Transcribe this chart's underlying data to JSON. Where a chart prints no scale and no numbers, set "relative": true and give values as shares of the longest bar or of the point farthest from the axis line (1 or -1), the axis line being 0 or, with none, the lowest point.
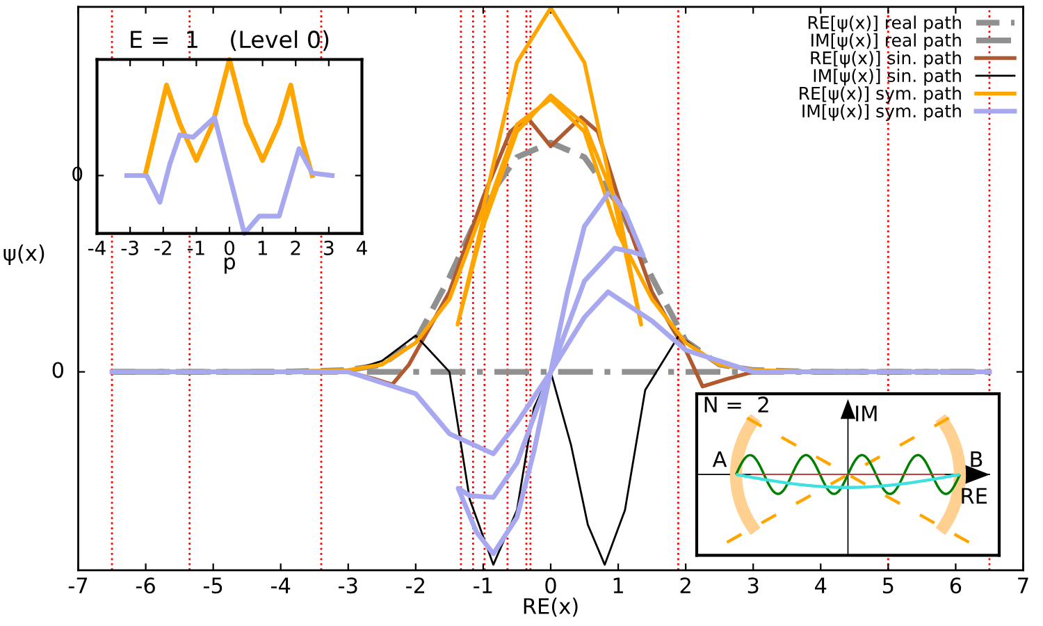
{
  "chart_data": [
    {
      "type": "line",
      "relative": true,
      "xlabel": "RE(x)",
      "ylabel": "ψ(x)",
      "xlim": [
        -7,
        7
      ],
      "xticks": [
        -7,
        -6,
        -5,
        -4,
        -3,
        -2,
        -1,
        0,
        1,
        2,
        3,
        4,
        5,
        6,
        7
      ],
      "annotations": [
        "0"
      ],
      "grid": false,
      "legend": "top right",
      "series": [
        {
          "name": "RE[ψ(x)] real path",
          "color": "#909090",
          "line_style": "dashed",
          "x": [
            -6.5,
            -4,
            -3,
            -2.5,
            -2,
            -1.5,
            -1,
            -0.5,
            0,
            0.5,
            1,
            1.5,
            2,
            2.5,
            3,
            4,
            6.5
          ],
          "values": [
            0,
            0,
            0.005,
            0.02,
            0.085,
            0.26,
            0.46,
            0.59,
            0.63,
            0.59,
            0.46,
            0.26,
            0.085,
            0.02,
            0.005,
            0,
            0
          ]
        },
        {
          "name": "IM[ψ(x)] real path",
          "color": "#909090",
          "line_style": "dashdot",
          "x": [
            -6.5,
            6.5
          ],
          "values": [
            0,
            0
          ]
        },
        {
          "name": "RE[ψ(x)] sin. path",
          "color": "#b05a30",
          "line_style": "solid",
          "x": [
            -6.5,
            -3,
            -2.6,
            -2.35,
            -2.1,
            -1.8,
            -1.5,
            -1,
            -0.6,
            -0.35,
            0,
            0.45,
            0.7,
            1,
            1.5,
            1.8,
            2,
            2.25,
            2.6,
            3,
            6.5
          ],
          "values": [
            0,
            0,
            -0.02,
            -0.035,
            0.02,
            0.12,
            0.22,
            0.48,
            0.66,
            0.7,
            0.62,
            0.7,
            0.66,
            0.48,
            0.22,
            0.12,
            0.06,
            -0.04,
            -0.02,
            0,
            0
          ]
        },
        {
          "name": "IM[ψ(x)] sin. path",
          "color": "#000000",
          "line_style": "solid",
          "x": [
            -6.5,
            -3,
            -2.5,
            -2,
            -1.5,
            -1.2,
            -0.85,
            -0.5,
            -0.25,
            0,
            0.3,
            0.55,
            0.8,
            1.1,
            1.4,
            1.9,
            2.4,
            3,
            6.5
          ],
          "values": [
            0,
            0,
            0.03,
            0.1,
            0,
            -0.35,
            -0.53,
            -0.38,
            -0.1,
            0,
            -0.2,
            -0.42,
            -0.53,
            -0.38,
            -0.05,
            0.1,
            0.03,
            0,
            0
          ]
        },
        {
          "name": "RE[ψ(x)] sym. path",
          "color": "#ffa500",
          "line_style": "solid",
          "x": [
            -6.5,
            -4,
            -3,
            -2.5,
            -2,
            -1.5,
            -1,
            -0.5,
            0,
            0.5,
            1,
            1.34,
            1,
            0.5,
            0,
            -0.5,
            -1,
            -1.38,
            -1,
            -0.5,
            0,
            0.5,
            1,
            1.5,
            2,
            2.5,
            3,
            4,
            6.5
          ],
          "values": [
            0,
            0,
            0.005,
            0.02,
            0.08,
            0.2,
            0.45,
            0.85,
            1.0,
            0.85,
            0.42,
            0.13,
            0.45,
            0.68,
            0.76,
            0.66,
            0.4,
            0.13,
            0.42,
            0.68,
            0.75,
            0.66,
            0.38,
            0.2,
            0.08,
            0.02,
            0.005,
            0,
            0
          ]
        },
        {
          "name": "IM[ψ(x)] sym. path",
          "color": "#a8a8f0",
          "line_style": "solid",
          "x": [
            -6.5,
            -3,
            -2,
            -1.5,
            -0.85,
            -0.5,
            0,
            0.5,
            0.85,
            1.5,
            2,
            3,
            6.5
          ],
          "values": [
            0,
            0,
            -0.06,
            -0.17,
            -0.225,
            -0.14,
            0,
            0.15,
            0.22,
            0.14,
            0.06,
            0,
            0
          ]
        },
        {
          "color": "#a8a8f0",
          "line_style": "solid",
          "x": [
            0.85,
            0.5,
            0.25,
            0,
            -0.25,
            -0.5,
            -0.85,
            -1.1,
            -1.37,
            -1.2,
            -0.85,
            -0.5,
            0,
            0.5,
            0.95,
            1.2,
            1.37,
            1.1,
            0.95
          ],
          "values": [
            0.49,
            0.4,
            0.22,
            0,
            -0.22,
            -0.4,
            -0.5,
            -0.44,
            -0.32,
            -0.34,
            -0.345,
            -0.25,
            0,
            0.25,
            0.34,
            0.33,
            0.32,
            0.44,
            0.48
          ]
        }
      ],
      "ref_lines": [
        {
          "axis": "x",
          "value": -6.5,
          "color": "#ff0000",
          "line_style": "dotted"
        },
        {
          "axis": "x",
          "value": -5.35,
          "color": "#ff0000",
          "line_style": "dotted"
        },
        {
          "axis": "x",
          "value": -3.4,
          "color": "#ff0000",
          "line_style": "dotted"
        },
        {
          "axis": "x",
          "value": -1.33,
          "color": "#ff0000",
          "line_style": "dotted"
        },
        {
          "axis": "x",
          "value": -1.15,
          "color": "#ff0000",
          "line_style": "dotted"
        },
        {
          "axis": "x",
          "value": -0.98,
          "color": "#ff0000",
          "line_style": "dotted"
        },
        {
          "axis": "x",
          "value": -0.64,
          "color": "#ff0000",
          "line_style": "dotted"
        },
        {
          "axis": "x",
          "value": -0.36,
          "color": "#ff0000",
          "line_style": "dotted"
        },
        {
          "axis": "x",
          "value": -0.3,
          "color": "#ff0000",
          "line_style": "dotted"
        },
        {
          "axis": "x",
          "value": 1.89,
          "color": "#ff0000",
          "line_style": "dotted"
        },
        {
          "axis": "x",
          "value": 5.0,
          "color": "#ff0000",
          "line_style": "dotted"
        },
        {
          "axis": "x",
          "value": 6.5,
          "color": "#ff0000",
          "line_style": "dotted"
        }
      ]
    },
    {
      "type": "line",
      "relative": true,
      "title": "E =  1    (Level 0)",
      "xlabel": "p",
      "xlim": [
        -4,
        4
      ],
      "xticks": [
        -4,
        -3,
        -2,
        -1,
        0,
        1,
        2,
        3,
        4
      ],
      "annotations": [
        "0"
      ],
      "series": [
        {
          "color": "#ffa500",
          "x": [
            -2.55,
            -2.3,
            -1.9,
            -1.5,
            -1,
            -0.5,
            0,
            0.5,
            1,
            1.5,
            1.85,
            2.2,
            2.5
          ],
          "values": [
            0.333,
            0.533,
            0.853,
            0.633,
            0.42,
            0.633,
            1,
            0.633,
            0.42,
            0.633,
            0.853,
            0.533,
            0.333
          ]
        },
        {
          "color": "#a8a8f0",
          "x": [
            -3.1,
            -2.5,
            -2.1,
            -1.8,
            -1.5,
            -1.1,
            -0.45,
            0,
            0.45,
            0.9,
            1.5,
            2.1,
            2.5,
            3.1
          ],
          "values": [
            0.333,
            0.333,
            0.18,
            0.4,
            0.567,
            0.553,
            0.667,
            0.333,
            0,
            0.1,
            0.1,
            0.487,
            0.347,
            0.333
          ]
        }
      ]
    },
    {
      "type": "other",
      "annotations": [
        "N =  2",
        "IM",
        "RE",
        "A",
        "B"
      ]
    }
  ]
}
